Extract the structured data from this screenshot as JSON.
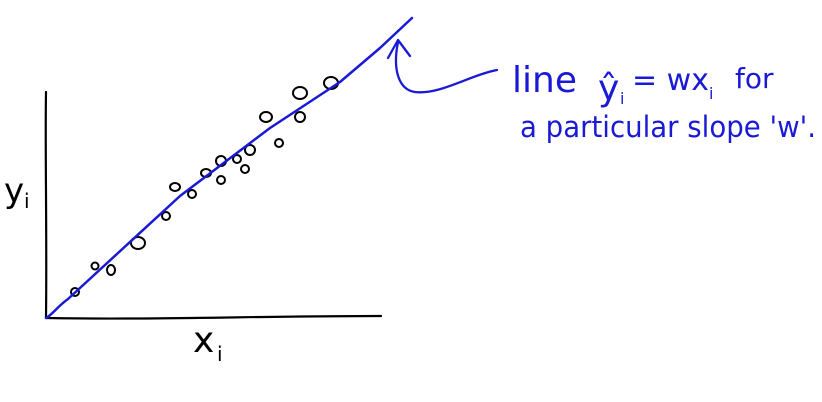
{
  "axes": {
    "x_label": "x",
    "x_sub": "i",
    "y_label": "y",
    "y_sub": "i"
  },
  "annotation": {
    "line1_word": "line",
    "line1_yhat": "ŷ",
    "line1_yhat_sub": "i",
    "line1_eq": "= wx",
    "line1_eq_sub": "i",
    "line1_tail": "for",
    "line2": "a particular slope 'w'."
  },
  "colors": {
    "ink": "#000000",
    "line": "#1a1ad6"
  }
}
